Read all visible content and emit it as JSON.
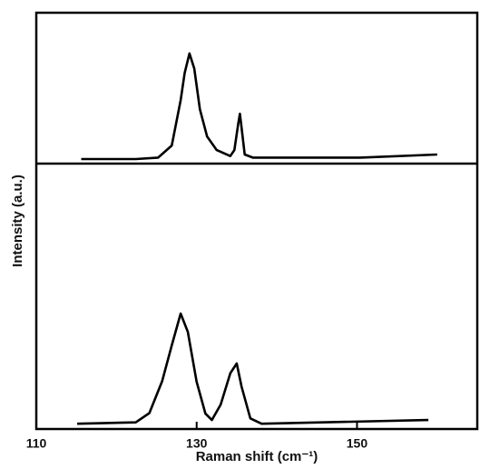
{
  "chart_data": [
    {
      "type": "line",
      "x": [
        115.6,
        122.4,
        125.2,
        126.9,
        128.0,
        128.5,
        129.1,
        129.7,
        130.4,
        131.3,
        132.5,
        134.2,
        134.7,
        135.2,
        135.4,
        135.6,
        136.0,
        137.0,
        150.4,
        160.0
      ],
      "values": [
        3,
        3,
        4,
        12,
        42,
        60,
        73,
        63,
        36,
        18,
        9,
        5,
        9,
        27,
        33,
        24,
        6,
        4,
        4,
        6
      ],
      "color": "#000000",
      "xlim": [
        110,
        165
      ],
      "ylim": [
        0,
        100
      ]
    },
    {
      "type": "line",
      "xlabel": "Raman shift (cm⁻¹)",
      "ylabel": "Intensity (a.u.)",
      "x": [
        115.1,
        122.4,
        124.1,
        125.7,
        126.9,
        128.0,
        128.9,
        130.0,
        131.1,
        131.9,
        133.0,
        134.2,
        135.0,
        135.6,
        136.7,
        138.1,
        158.9
      ],
      "values": [
        2,
        2.5,
        6,
        18,
        31.5,
        43.5,
        36.6,
        17.8,
        5.8,
        3.4,
        9.2,
        21,
        24.7,
        16,
        4,
        2,
        3.4
      ],
      "color": "#000000",
      "xlim": [
        110,
        165
      ],
      "ylim": [
        0,
        100
      ],
      "xticks": [
        110,
        130,
        150
      ]
    }
  ]
}
